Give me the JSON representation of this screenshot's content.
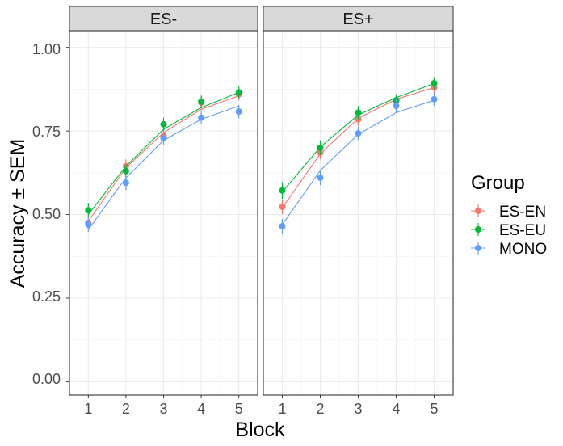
{
  "chart_data": {
    "type": "line",
    "ylabel": "Accuracy ± SEM",
    "xlabel": "Block",
    "x": [
      1,
      2,
      3,
      4,
      5
    ],
    "x_ticks": [
      "1",
      "2",
      "3",
      "4",
      "5"
    ],
    "y_ticks": [
      "0.00",
      "0.25",
      "0.50",
      "0.75",
      "1.00"
    ],
    "ylim": [
      -0.04,
      1.05
    ],
    "xlim": [
      0.5,
      5.5
    ],
    "grid": true,
    "legend": {
      "title": "Group",
      "position": "right",
      "entries": [
        "ES-EN",
        "ES-EU",
        "MONO"
      ]
    },
    "colors": {
      "ES-EN": "#F8766D",
      "ES-EU": "#00BA38",
      "MONO": "#619CFF"
    },
    "panels": [
      {
        "label": "ES-",
        "series": [
          {
            "name": "ES-EN",
            "points": [
              0.475,
              0.645,
              0.735,
              0.835,
              0.86
            ],
            "sem": [
              0.02,
              0.02,
              0.018,
              0.018,
              0.018
            ],
            "fit": [
              0.48,
              0.64,
              0.745,
              0.815,
              0.855
            ]
          },
          {
            "name": "ES-EU",
            "points": [
              0.513,
              0.63,
              0.77,
              0.838,
              0.865
            ],
            "sem": [
              0.022,
              0.02,
              0.02,
              0.018,
              0.018
            ],
            "fit": [
              0.5,
              0.645,
              0.755,
              0.82,
              0.865
            ]
          },
          {
            "name": "MONO",
            "points": [
              0.47,
              0.595,
              0.728,
              0.79,
              0.808
            ],
            "sem": [
              0.022,
              0.022,
              0.02,
              0.02,
              0.02
            ],
            "fit": [
              0.455,
              0.61,
              0.722,
              0.785,
              0.825
            ]
          }
        ]
      },
      {
        "label": "ES+",
        "series": [
          {
            "name": "ES-EN",
            "points": [
              0.523,
              0.685,
              0.785,
              0.84,
              0.88
            ],
            "sem": [
              0.022,
              0.02,
              0.02,
              0.018,
              0.018
            ],
            "fit": [
              0.52,
              0.682,
              0.788,
              0.845,
              0.88
            ]
          },
          {
            "name": "ES-EU",
            "points": [
              0.572,
              0.7,
              0.805,
              0.842,
              0.893
            ],
            "sem": [
              0.025,
              0.022,
              0.02,
              0.018,
              0.018
            ],
            "fit": [
              0.568,
              0.702,
              0.798,
              0.85,
              0.892
            ]
          },
          {
            "name": "MONO",
            "points": [
              0.465,
              0.61,
              0.743,
              0.825,
              0.845
            ],
            "sem": [
              0.022,
              0.022,
              0.02,
              0.02,
              0.02
            ],
            "fit": [
              0.47,
              0.632,
              0.74,
              0.805,
              0.842
            ]
          }
        ]
      }
    ]
  }
}
